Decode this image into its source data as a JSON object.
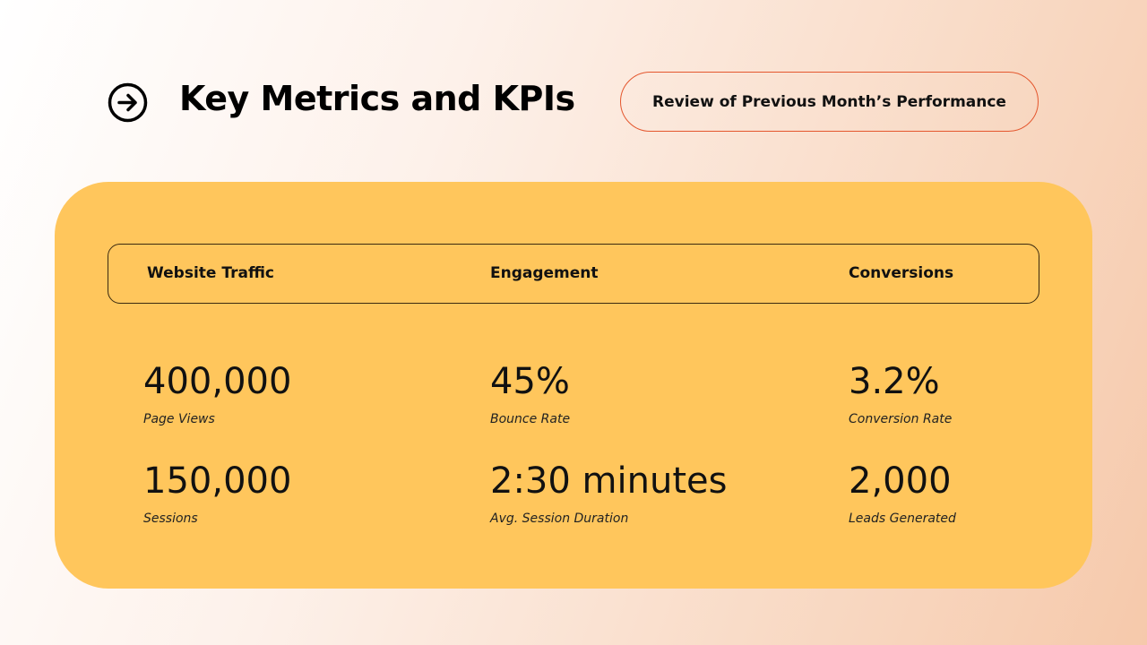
{
  "title": "Key Metrics and KPIs",
  "subtitle_pill": "Review of Previous Month’s Performance",
  "accent_color": "#e4572e",
  "card_color": "#ffc65c",
  "columns": [
    "Website Traffic",
    "Engagement",
    "Conversions"
  ],
  "metrics": [
    [
      {
        "value": "400,000",
        "label": "Page Views"
      },
      {
        "value": "45%",
        "label": "Bounce Rate"
      },
      {
        "value": "3.2%",
        "label": "Conversion Rate"
      }
    ],
    [
      {
        "value": "150,000",
        "label": "Sessions"
      },
      {
        "value": "2:30 minutes",
        "label": "Avg. Session Duration"
      },
      {
        "value": "2,000",
        "label": "Leads Generated"
      }
    ]
  ]
}
